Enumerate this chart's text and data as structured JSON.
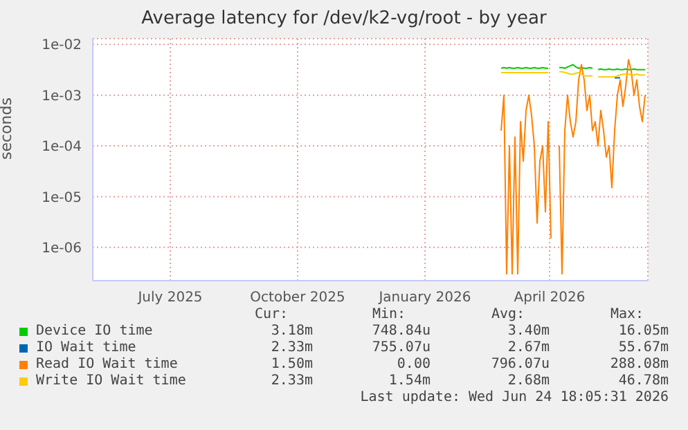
{
  "chart_data": {
    "type": "line",
    "title": "Average latency for /dev/k2-vg/root - by year",
    "ylabel": "seconds",
    "x": [
      "2026-03-11",
      "2026-03-13",
      "2026-03-15",
      "2026-03-17",
      "2026-03-19",
      "2026-03-21",
      "2026-03-23",
      "2026-03-25",
      "2026-03-27",
      "2026-03-29",
      "2026-03-31",
      "2026-04-02",
      "2026-04-04",
      "2026-04-06",
      "2026-04-08",
      "2026-04-10",
      "2026-04-12",
      "2026-04-14",
      "2026-04-16",
      "2026-04-18",
      "2026-04-20",
      "2026-04-22",
      "2026-04-24",
      "2026-04-26",
      "2026-04-28",
      "2026-04-30",
      "2026-05-02",
      "2026-05-04",
      "2026-05-06",
      "2026-05-08",
      "2026-05-10",
      "2026-05-12",
      "2026-05-14",
      "2026-05-16",
      "2026-05-18",
      "2026-05-20",
      "2026-05-22",
      "2026-05-24",
      "2026-05-26",
      "2026-05-28",
      "2026-05-30",
      "2026-06-01",
      "2026-06-03",
      "2026-06-05",
      "2026-06-07",
      "2026-06-09",
      "2026-06-11",
      "2026-06-13",
      "2026-06-15",
      "2026-06-17",
      "2026-06-19",
      "2026-06-21",
      "2026-06-23"
    ],
    "series": [
      {
        "name": "Device IO time",
        "color": "#00cc00",
        "values": [
          0.0034,
          0.0035,
          0.0034,
          0.0035,
          0.0034,
          0.0034,
          0.0035,
          0.0034,
          0.0034,
          0.0035,
          0.0034,
          0.0034,
          0.0035,
          0.0034,
          0.0034,
          0.0035,
          0.0034,
          0.0034,
          null,
          null,
          null,
          0.0035,
          0.0035,
          0.0034,
          0.0036,
          0.0038,
          0.004,
          0.0036,
          0.0034,
          0.0035,
          0.0034,
          0.0034,
          0.0035,
          0.0034,
          null,
          0.0032,
          0.0033,
          0.0032,
          0.0032,
          0.0033,
          0.0032,
          0.0032,
          0.0033,
          0.0032,
          0.0032,
          0.0033,
          0.0032,
          0.0032,
          0.0033,
          0.0032,
          0.0032,
          0.0032,
          0.0032
        ]
      },
      {
        "name": "IO Wait time",
        "color": "#0066b3",
        "values": [
          null,
          null,
          null,
          null,
          null,
          null,
          null,
          null,
          null,
          null,
          null,
          null,
          null,
          null,
          null,
          null,
          null,
          null,
          null,
          null,
          null,
          null,
          null,
          null,
          null,
          null,
          null,
          null,
          null,
          null,
          null,
          null,
          null,
          null,
          null,
          null,
          null,
          null,
          null,
          null,
          null,
          0.0022,
          0.0022,
          0.0022,
          null,
          null,
          null,
          null,
          null,
          null,
          null,
          null,
          null
        ]
      },
      {
        "name": "Read IO Wait time",
        "color": "#ff8000",
        "values": [
          0.0002,
          0.001,
          3e-07,
          0.0001,
          3e-07,
          0.00015,
          3e-07,
          0.0003,
          5e-05,
          0.0005,
          0.001,
          0.0004,
          0.0001,
          3e-06,
          5e-05,
          0.0001,
          5e-06,
          0.0003,
          1.5e-06,
          null,
          null,
          0.0001,
          3e-07,
          0.0002,
          0.001,
          0.0003,
          0.00015,
          0.0003,
          0.002,
          0.004,
          0.002,
          0.0005,
          0.001,
          0.0002,
          0.0003,
          0.0001,
          0.0005,
          0.0002,
          6e-05,
          0.0001,
          1.5e-05,
          0.0002,
          0.001,
          0.002,
          0.0006,
          0.0015,
          0.005,
          0.003,
          0.001,
          0.002,
          0.0006,
          0.0003,
          0.001
        ]
      },
      {
        "name": "Write IO Wait time",
        "color": "#ffcc00",
        "values": [
          0.0028,
          0.0028,
          0.0028,
          0.0028,
          0.0028,
          0.0028,
          0.0028,
          0.0028,
          0.0028,
          0.0028,
          0.0028,
          0.0028,
          0.0028,
          0.0028,
          0.0028,
          0.0028,
          0.0028,
          0.0028,
          null,
          null,
          null,
          0.0029,
          0.0029,
          0.0028,
          0.0027,
          0.0026,
          0.0026,
          0.0027,
          0.0028,
          0.0026,
          0.0024,
          0.0024,
          0.0024,
          0.0024,
          null,
          0.0023,
          0.0023,
          0.0023,
          0.0023,
          0.0023,
          0.0023,
          0.0023,
          0.0024,
          0.0025,
          0.0026,
          0.0026,
          0.0026,
          0.0025,
          0.0025,
          0.0026,
          0.0025,
          0.0025,
          0.0025
        ]
      }
    ],
    "log": "y",
    "ylim": [
      2.2e-07,
      0.013
    ],
    "yticks": [
      {
        "value": 1e-06,
        "label": "1e-06"
      },
      {
        "value": 1e-05,
        "label": "1e-05"
      },
      {
        "value": 0.0001,
        "label": "1e-04"
      },
      {
        "value": 0.001,
        "label": "1e-03"
      },
      {
        "value": 0.01,
        "label": "1e-02"
      }
    ],
    "xlim": [
      "2025-05-20",
      "2026-06-25"
    ],
    "xticks": [
      {
        "value": "2025-07-15",
        "label": "July 2025"
      },
      {
        "value": "2025-10-15",
        "label": "October 2025"
      },
      {
        "value": "2026-01-15",
        "label": "January 2026"
      },
      {
        "value": "2026-04-15",
        "label": "April 2026"
      }
    ],
    "grid": true,
    "legend": "bottom",
    "marker": "none",
    "annotations": [
      "Cur:",
      "Min:",
      "Avg:",
      "Max:",
      "3.18m",
      "748.84u",
      "3.40m",
      "16.05m",
      "2.33m",
      "755.07u",
      "2.67m",
      "55.67m",
      "1.50m",
      "0.00",
      "796.07u",
      "288.08m",
      "2.33m",
      "1.54m",
      "2.68m",
      "46.78m",
      "Last update: Wed Jun 24 18:05:31 2026"
    ]
  }
}
